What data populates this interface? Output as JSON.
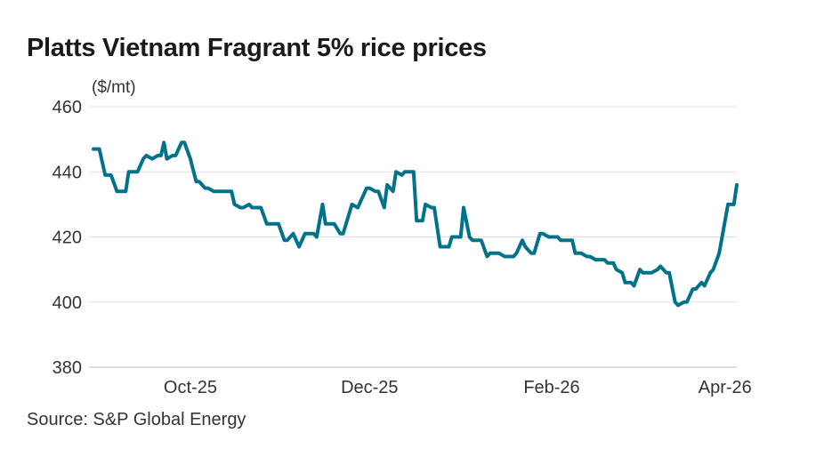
{
  "chart_data": {
    "type": "line",
    "title": "Platts Vietnam Fragrant 5% rice prices",
    "ylabel": "($/mt)",
    "source": "Source: S&P Global Energy",
    "ylim": [
      380,
      460
    ],
    "yticks": [
      380,
      400,
      420,
      440,
      460
    ],
    "xlim": [
      "2025-08-29",
      "2026-04-05"
    ],
    "xticks": [
      {
        "date": "2025-10-01",
        "label": "Oct-25"
      },
      {
        "date": "2025-12-01",
        "label": "Dec-25"
      },
      {
        "date": "2026-02-01",
        "label": "Feb-26"
      },
      {
        "date": "2026-04-01",
        "label": "Apr-26"
      }
    ],
    "grid": "horizontal",
    "line_color": "#00728a",
    "series": [
      {
        "x": [
          "2025-08-29",
          "2025-08-31",
          "2025-09-02",
          "2025-09-04",
          "2025-09-06",
          "2025-09-09",
          "2025-09-10",
          "2025-09-13",
          "2025-09-15",
          "2025-09-16",
          "2025-09-18",
          "2025-09-20",
          "2025-09-21",
          "2025-09-22",
          "2025-09-23",
          "2025-09-25",
          "2025-09-26",
          "2025-09-28",
          "2025-09-29",
          "2025-10-01",
          "2025-10-03",
          "2025-10-04",
          "2025-10-06",
          "2025-10-07",
          "2025-10-09",
          "2025-10-15",
          "2025-10-16",
          "2025-10-18",
          "2025-10-19",
          "2025-10-21",
          "2025-10-22",
          "2025-10-25",
          "2025-10-27",
          "2025-10-31",
          "2025-11-02",
          "2025-11-03",
          "2025-11-05",
          "2025-11-07",
          "2025-11-09",
          "2025-11-12",
          "2025-11-13",
          "2025-11-15",
          "2025-11-16",
          "2025-11-19",
          "2025-11-21",
          "2025-11-22",
          "2025-11-25",
          "2025-11-27",
          "2025-11-28",
          "2025-11-30",
          "2025-12-01",
          "2025-12-03",
          "2025-12-04",
          "2025-12-06",
          "2025-12-07",
          "2025-12-09",
          "2025-12-10",
          "2025-12-12",
          "2025-12-13",
          "2025-12-16",
          "2025-12-17",
          "2025-12-19",
          "2025-12-20",
          "2025-12-22",
          "2025-12-23",
          "2025-12-25",
          "2025-12-28",
          "2025-12-29",
          "2026-01-01",
          "2026-01-02",
          "2026-01-04",
          "2026-01-05",
          "2026-01-08",
          "2026-01-10",
          "2026-01-11",
          "2026-01-14",
          "2026-01-16",
          "2026-01-19",
          "2026-01-20",
          "2026-01-22",
          "2026-01-23",
          "2026-01-25",
          "2026-01-26",
          "2026-01-28",
          "2026-01-29",
          "2026-01-31",
          "2026-02-03",
          "2026-02-04",
          "2026-02-08",
          "2026-02-09",
          "2026-02-11",
          "2026-02-13",
          "2026-02-14",
          "2026-02-16",
          "2026-02-19",
          "2026-02-20",
          "2026-02-22",
          "2026-02-23",
          "2026-02-25",
          "2026-02-26",
          "2026-02-28",
          "2026-03-01",
          "2026-03-03",
          "2026-03-04",
          "2026-03-07",
          "2026-03-09",
          "2026-03-10",
          "2026-03-12",
          "2026-03-13",
          "2026-03-15",
          "2026-03-16",
          "2026-03-18",
          "2026-03-19",
          "2026-03-21",
          "2026-03-22",
          "2026-03-24",
          "2026-03-25",
          "2026-03-27",
          "2026-03-28",
          "2026-03-30",
          "2026-03-31",
          "2026-04-02",
          "2026-04-04",
          "2026-04-05"
        ],
        "y": [
          447,
          447,
          439,
          439,
          434,
          434,
          440,
          440,
          444,
          445,
          444,
          445,
          445,
          449,
          444,
          445,
          445,
          449,
          449,
          444,
          437,
          437,
          435,
          435,
          434,
          434,
          430,
          429,
          429,
          430,
          429,
          429,
          424,
          424,
          419,
          419,
          421,
          417,
          421,
          421,
          420,
          430,
          424,
          424,
          421,
          421,
          430,
          429,
          431,
          435,
          435,
          434,
          434,
          429,
          436,
          434,
          440,
          439,
          440,
          440,
          425,
          425,
          430,
          429,
          429,
          417,
          417,
          420,
          420,
          429,
          420,
          419,
          419,
          414,
          415,
          415,
          414,
          414,
          415,
          419,
          417,
          415,
          415,
          421,
          421,
          420,
          420,
          419,
          419,
          415,
          415,
          414,
          414,
          413,
          413,
          412,
          412,
          410,
          409,
          406,
          406,
          405,
          410,
          409,
          409,
          410,
          411,
          409,
          409,
          400,
          399,
          400,
          400,
          404,
          404,
          406,
          405,
          409,
          410,
          415,
          420,
          430,
          430,
          436
        ]
      }
    ]
  }
}
